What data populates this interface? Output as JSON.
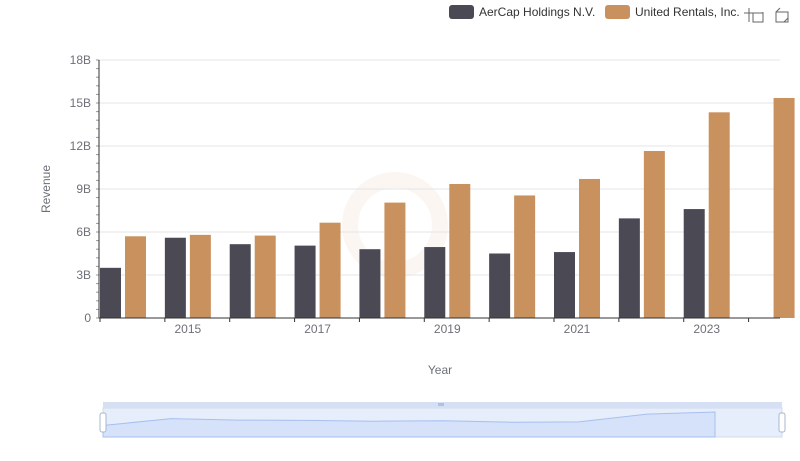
{
  "toolbox": {
    "zoom_icon": "zoom-select-icon",
    "restore_icon": "restore-icon"
  },
  "colors": {
    "aercap": "#4a4954",
    "united": "#c8915e",
    "grid": "#e6e6e6",
    "axis": "#333333",
    "slider_fill": "#d6e2f9",
    "slider_line": "#a7bff0"
  },
  "chart_data": {
    "type": "bar",
    "xlabel": "Year",
    "ylabel": "Revenue",
    "ylim": [
      0,
      18000000000
    ],
    "yticks": [
      "0",
      "3B",
      "6B",
      "9B",
      "12B",
      "15B",
      "18B"
    ],
    "ytick_values": [
      0,
      3000000000,
      6000000000,
      9000000000,
      12000000000,
      15000000000,
      18000000000
    ],
    "categories": [
      "2014",
      "2015",
      "2016",
      "2017",
      "2018",
      "2019",
      "2020",
      "2021",
      "2022",
      "2023",
      "2024"
    ],
    "x_tick_labels": [
      "2015",
      "2017",
      "2019",
      "2021",
      "2023"
    ],
    "legend_position": "top-right",
    "grid": true,
    "series": [
      {
        "name": "AerCap Holdings N.V.",
        "values": [
          3500000000,
          5600000000,
          5150000000,
          5050000000,
          4800000000,
          4950000000,
          4500000000,
          4600000000,
          6950000000,
          7600000000,
          null
        ]
      },
      {
        "name": "United Rentals, Inc.",
        "values": [
          5700000000,
          5800000000,
          5750000000,
          6650000000,
          8050000000,
          9350000000,
          8550000000,
          9700000000,
          11650000000,
          14350000000,
          15350000000
        ]
      }
    ]
  }
}
